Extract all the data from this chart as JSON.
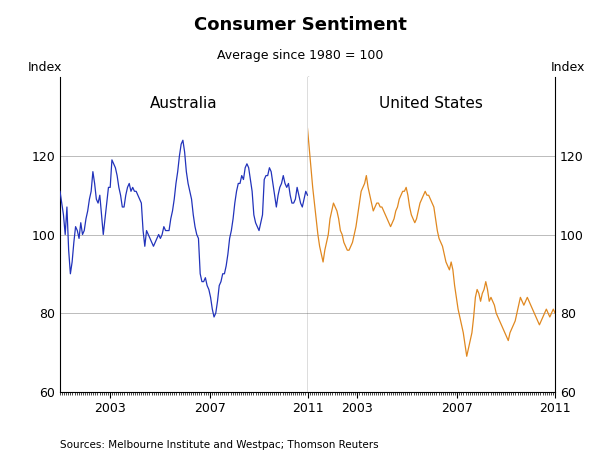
{
  "title": "Consumer Sentiment",
  "subtitle": "Average since 1980 = 100",
  "ylabel_left": "Index",
  "ylabel_right": "Index",
  "label_australia": "Australia",
  "label_us": "United States",
  "source": "Sources: Melbourne Institute and Westpac; Thomson Reuters",
  "ylim": [
    60,
    140
  ],
  "yticks": [
    60,
    80,
    100,
    120
  ],
  "color_australia": "#2233bb",
  "color_us": "#e08820",
  "background_color": "#ffffff",
  "grid_color": "#bbbbbb",
  "divider_color": "#555555",
  "aus_xtick_labels": [
    "2003",
    "2007",
    "2011"
  ],
  "us_xtick_labels": [
    "2003",
    "2007",
    "2011"
  ],
  "aus_data": [
    111,
    108,
    105,
    100,
    107,
    96,
    90,
    93,
    98,
    102,
    101,
    99,
    103,
    100,
    101,
    104,
    106,
    109,
    111,
    116,
    113,
    109,
    108,
    110,
    105,
    100,
    104,
    108,
    112,
    112,
    119,
    118,
    117,
    115,
    112,
    110,
    107,
    107,
    110,
    112,
    113,
    111,
    112,
    111,
    111,
    110,
    109,
    108,
    101,
    97,
    101,
    100,
    99,
    98,
    97,
    98,
    99,
    100,
    99,
    100,
    102,
    101,
    101,
    101,
    104,
    106,
    109,
    113,
    116,
    120,
    123,
    124,
    121,
    116,
    113,
    111,
    109,
    105,
    102,
    100,
    99,
    90,
    88,
    88,
    89,
    87,
    86,
    84,
    81,
    79,
    80,
    83,
    87,
    88,
    90,
    90,
    92,
    95,
    99,
    101,
    104,
    108,
    111,
    113,
    113,
    115,
    114,
    117,
    118,
    117,
    114,
    111,
    105,
    103,
    102,
    101,
    103,
    105,
    114,
    115,
    115,
    117,
    116,
    113,
    110,
    107,
    110,
    112,
    113,
    115,
    113,
    112,
    113,
    110,
    108,
    108,
    109,
    112,
    110,
    108,
    107,
    109,
    111,
    110
  ],
  "us_data": [
    127,
    122,
    117,
    112,
    108,
    104,
    100,
    97,
    95,
    93,
    96,
    98,
    100,
    104,
    106,
    108,
    107,
    106,
    104,
    101,
    100,
    98,
    97,
    96,
    96,
    97,
    98,
    100,
    102,
    105,
    108,
    111,
    112,
    113,
    115,
    112,
    110,
    108,
    106,
    107,
    108,
    108,
    107,
    107,
    106,
    105,
    104,
    103,
    102,
    103,
    104,
    106,
    107,
    109,
    110,
    111,
    111,
    112,
    110,
    107,
    105,
    104,
    103,
    104,
    106,
    108,
    109,
    110,
    111,
    110,
    110,
    109,
    108,
    107,
    104,
    101,
    99,
    98,
    97,
    95,
    93,
    92,
    91,
    93,
    91,
    87,
    84,
    81,
    79,
    77,
    75,
    72,
    69,
    71,
    73,
    75,
    79,
    84,
    86,
    85,
    83,
    85,
    86,
    88,
    86,
    83,
    84,
    83,
    82,
    80,
    79,
    78,
    77,
    76,
    75,
    74,
    73,
    75,
    76,
    77,
    78,
    80,
    82,
    84,
    83,
    82,
    83,
    84,
    83,
    82,
    81,
    80,
    79,
    78,
    77,
    78,
    79,
    80,
    81,
    80,
    79,
    80,
    81,
    80
  ]
}
